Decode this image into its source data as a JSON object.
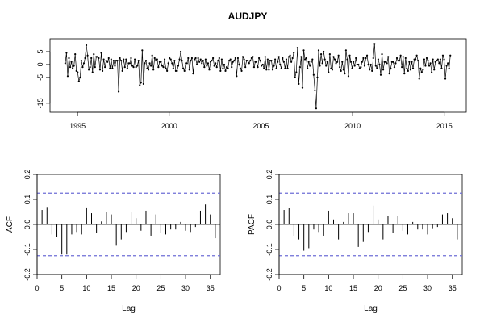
{
  "chart_data": [
    {
      "type": "line",
      "title": "AUDJPY",
      "xlabel": "",
      "ylabel": "",
      "x_range": [
        1994.33,
        2015.33
      ],
      "xlim": [
        1993.5,
        2016.2
      ],
      "ylim": [
        -18.5,
        10
      ],
      "x_ticks": [
        1995,
        2000,
        2005,
        2010,
        2015
      ],
      "x_tick_labels": [
        "1995",
        "2000",
        "2005",
        "2010",
        "2015"
      ],
      "y_ticks": [
        5,
        0,
        -5,
        -15
      ],
      "y_tick_labels": [
        "5",
        "0",
        "-5",
        "-15"
      ],
      "marker": "point",
      "series": [
        {
          "values": [
            0.5,
            4.5,
            -4.5,
            2.5,
            -1.0,
            1.0,
            -1.5,
            -0.5,
            4.0,
            -2.5,
            -3.0,
            -6.5,
            -5.0,
            1.5,
            -1.0,
            0.5,
            2.5,
            7.5,
            3.5,
            -2.0,
            -1.0,
            2.5,
            -3.0,
            4.0,
            -1.0,
            3.0,
            3.0,
            2.5,
            -2.0,
            4.5,
            -2.5,
            2.0,
            -1.0,
            1.5,
            1.0,
            2.5,
            -1.5,
            2.0,
            -1.5,
            1.5,
            -0.5,
            1.5,
            1.5,
            -10.5,
            2.5,
            1.5,
            -2.5,
            2.0,
            -1.0,
            2.0,
            -1.5,
            0.5,
            0.5,
            2.5,
            -0.5,
            -1.0,
            2.0,
            -1.0,
            -0.5,
            1.5,
            -8.0,
            -7.0,
            5.5,
            -7.5,
            0.5,
            1.5,
            -1.5,
            -2.0,
            0.5,
            -0.5,
            3.5,
            -2.0,
            2.5,
            1.5,
            2.0,
            -1.0,
            1.0,
            1.0,
            -0.5,
            -1.0,
            2.0,
            -1.5,
            -2.5,
            0.5,
            2.5,
            2.0,
            0.5,
            -1.5,
            1.5,
            -2.5,
            -2.5,
            -0.5,
            2.0,
            5.0,
            1.5,
            -1.5,
            -2.5,
            0.5,
            0.5,
            2.5,
            -2.0,
            1.5,
            2.5,
            -3.5,
            2.0,
            2.5,
            0.0,
            2.5,
            1.0,
            2.0,
            0.5,
            1.5,
            -1.0,
            2.0,
            -0.5,
            0.5,
            -2.0,
            1.0,
            1.5,
            2.5,
            -0.5,
            0.5,
            -1.0,
            1.5,
            2.5,
            -2.5,
            2.0,
            -1.5,
            0.0,
            -2.5,
            -1.0,
            -1.5,
            1.5,
            2.0,
            -1.0,
            1.0,
            1.5,
            2.5,
            -4.5,
            2.5,
            0.0,
            -1.5,
            -2.5,
            3.0,
            2.0,
            -1.0,
            1.5,
            1.5,
            0.5,
            1.5,
            2.5,
            3.0,
            -1.0,
            1.0,
            1.0,
            -1.0,
            2.5,
            1.5,
            -0.5,
            0.0,
            -1.5,
            3.0,
            -2.0,
            2.0,
            -2.0,
            1.5,
            1.5,
            -2.0,
            -0.5,
            2.0,
            -1.5,
            1.0,
            3.0,
            0.0,
            -1.5,
            2.5,
            1.0,
            -1.5,
            2.0,
            -1.5,
            3.0,
            3.5,
            1.0,
            2.5,
            4.5,
            -5.0,
            -3.0,
            6.5,
            -7.5,
            -1.0,
            3.0,
            -9.0,
            5.5,
            2.0,
            2.5,
            -1.5,
            1.0,
            -0.5,
            1.0,
            2.0,
            -4.0,
            -10.0,
            -17.0,
            -5.0,
            5.5,
            -0.5,
            4.0,
            0.5,
            5.0,
            2.0,
            -0.5,
            1.0,
            -3.0,
            4.0,
            -1.5,
            -2.0,
            3.0,
            2.0,
            0.5,
            1.0,
            3.5,
            -1.0,
            -2.5,
            1.0,
            -2.0,
            -3.5,
            5.5,
            2.0,
            -4.5,
            3.5,
            1.0,
            -1.5,
            1.0,
            -0.5,
            2.5,
            0.0,
            0.0,
            -1.5,
            -1.0,
            1.0,
            2.5,
            -0.5,
            2.5,
            3.5,
            0.0,
            -2.0,
            0.0,
            -2.5,
            2.5,
            8.0,
            -0.5,
            -1.5,
            2.0,
            0.0,
            -4.0,
            4.0,
            -2.0,
            1.0,
            1.0,
            0.5,
            3.0,
            -3.5,
            -1.5,
            1.0,
            1.0,
            -1.0,
            0.5,
            2.5,
            1.5,
            1.5,
            3.5,
            -1.0,
            3.0,
            -3.5,
            2.5,
            -1.5,
            -2.5,
            1.0,
            -2.0,
            1.0,
            -1.5,
            2.0,
            2.0,
            3.5,
            1.5,
            -5.5,
            -1.5,
            -3.0,
            -2.0,
            2.0,
            -0.5,
            2.5,
            1.5,
            -0.5,
            0.5,
            -3.0,
            2.0,
            -2.0,
            1.0,
            1.5,
            2.0,
            0.5,
            2.0,
            -1.5,
            3.5,
            2.0,
            -5.5,
            -0.5,
            0.5,
            -1.5,
            3.5
          ]
        }
      ]
    },
    {
      "type": "bar",
      "title": "",
      "xlabel": "Lag",
      "ylabel": "ACF",
      "xlim": [
        0,
        37
      ],
      "ylim": [
        -0.2,
        0.2
      ],
      "x_ticks": [
        0,
        5,
        10,
        15,
        20,
        25,
        30,
        35
      ],
      "x_tick_labels": [
        "0",
        "5",
        "10",
        "15",
        "20",
        "25",
        "30",
        "35"
      ],
      "y_ticks": [
        -0.2,
        -0.1,
        0.0,
        0.1,
        0.2
      ],
      "y_tick_labels": [
        "-0.2",
        "-0.1",
        "0.0",
        "0.1",
        "0.2"
      ],
      "confidence_band": [
        -0.125,
        0.125
      ],
      "band_color": "#6f6fd6",
      "lags": [
        1,
        2,
        3,
        4,
        5,
        6,
        7,
        8,
        9,
        10,
        11,
        12,
        13,
        14,
        15,
        16,
        17,
        18,
        19,
        20,
        21,
        22,
        23,
        24,
        25,
        26,
        27,
        28,
        29,
        30,
        31,
        32,
        33,
        34,
        35,
        36
      ],
      "values": [
        0.058,
        0.07,
        -0.04,
        -0.05,
        -0.12,
        -0.12,
        -0.04,
        -0.03,
        -0.04,
        0.068,
        0.045,
        -0.035,
        0.012,
        0.05,
        0.04,
        -0.085,
        -0.06,
        -0.03,
        0.05,
        0.025,
        -0.025,
        0.055,
        -0.045,
        0.04,
        -0.035,
        -0.04,
        -0.02,
        -0.02,
        0.01,
        -0.025,
        -0.03,
        -0.01,
        0.055,
        0.08,
        0.04,
        -0.055
      ]
    },
    {
      "type": "bar",
      "title": "",
      "xlabel": "Lag",
      "ylabel": "PACF",
      "xlim": [
        0,
        37
      ],
      "ylim": [
        -0.2,
        0.2
      ],
      "x_ticks": [
        0,
        5,
        10,
        15,
        20,
        25,
        30,
        35
      ],
      "x_tick_labels": [
        "0",
        "5",
        "10",
        "15",
        "20",
        "25",
        "30",
        "35"
      ],
      "y_ticks": [
        -0.2,
        -0.1,
        0.0,
        0.1,
        0.2
      ],
      "y_tick_labels": [
        "-0.2",
        "-0.1",
        "0.0",
        "0.1",
        "0.2"
      ],
      "confidence_band": [
        -0.125,
        0.125
      ],
      "band_color": "#6f6fd6",
      "lags": [
        1,
        2,
        3,
        4,
        5,
        6,
        7,
        8,
        9,
        10,
        11,
        12,
        13,
        14,
        15,
        16,
        17,
        18,
        19,
        20,
        21,
        22,
        23,
        24,
        25,
        26,
        27,
        28,
        29,
        30,
        31,
        32,
        33,
        34,
        35,
        36
      ],
      "values": [
        0.058,
        0.065,
        -0.045,
        -0.06,
        -0.105,
        -0.095,
        -0.02,
        -0.03,
        -0.045,
        0.055,
        0.02,
        -0.06,
        0.01,
        0.045,
        0.045,
        -0.09,
        -0.07,
        -0.03,
        0.075,
        0.02,
        -0.06,
        0.035,
        -0.035,
        0.035,
        -0.025,
        -0.04,
        0.01,
        -0.02,
        -0.02,
        -0.04,
        -0.015,
        -0.01,
        0.04,
        0.045,
        0.025,
        -0.06
      ]
    }
  ]
}
